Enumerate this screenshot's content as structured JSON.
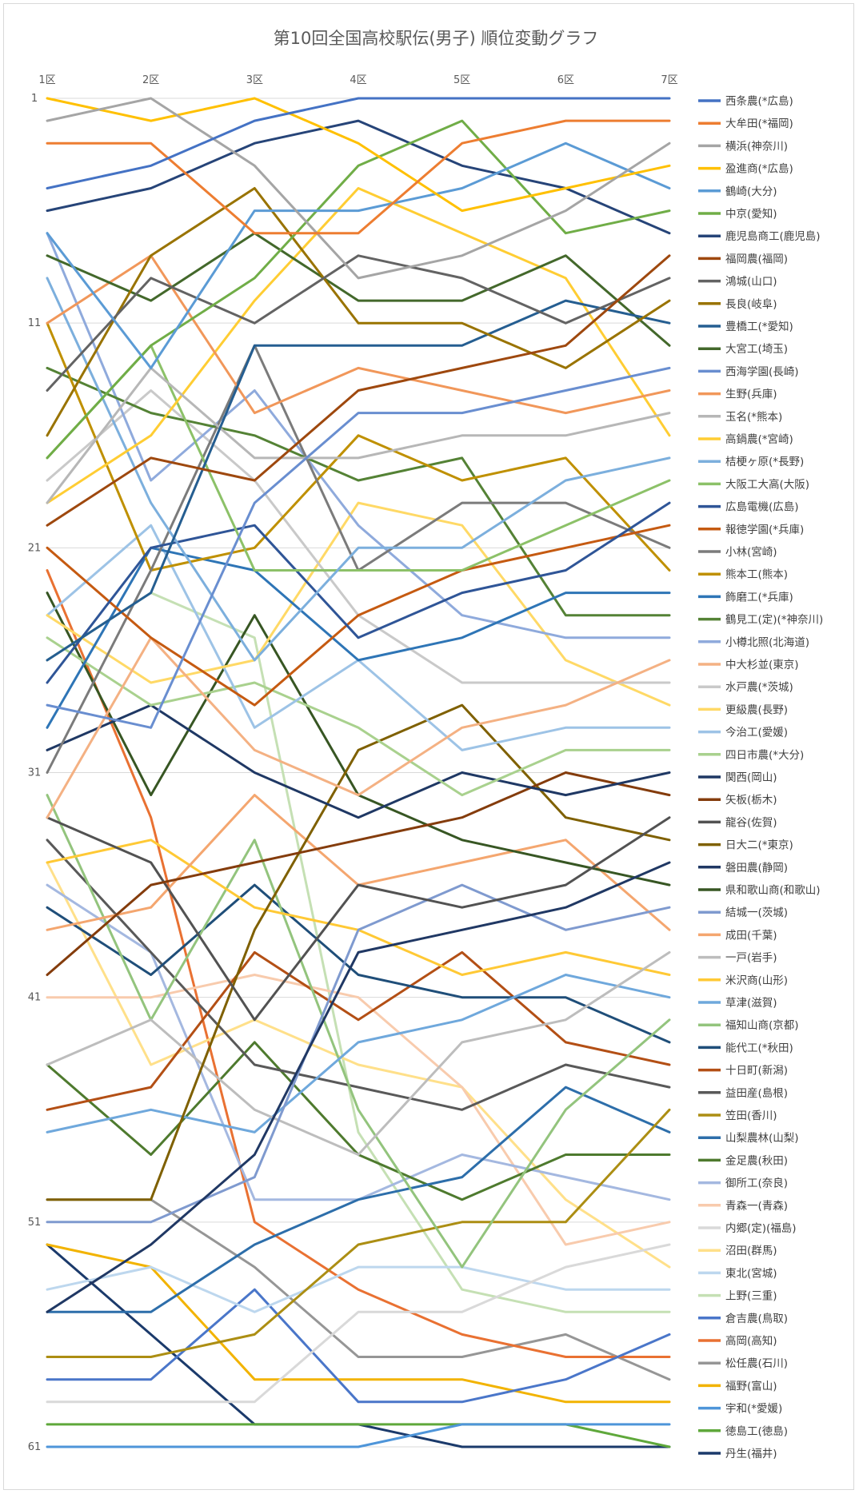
{
  "chart_data": {
    "type": "line",
    "title": "第10回全国高校駅伝(男子) 順位変動グラフ",
    "categories": [
      "1区",
      "2区",
      "3区",
      "4区",
      "5区",
      "6区",
      "7区"
    ],
    "y_ticks": [
      "1",
      "11",
      "21",
      "31",
      "41",
      "51",
      "61"
    ],
    "ylim": [
      1,
      61
    ],
    "y_reversed": true,
    "grid": "horizontal",
    "legend_position": "right",
    "series": [
      {
        "name": "西条農(*広島)",
        "color": "#4472C4",
        "values": [
          5,
          4,
          2,
          1,
          1,
          1,
          1
        ]
      },
      {
        "name": "大牟田(*福岡)",
        "color": "#ED7D31",
        "values": [
          3,
          3,
          7,
          7,
          3,
          2,
          2
        ]
      },
      {
        "name": "横浜(神奈川)",
        "color": "#A5A5A5",
        "values": [
          2,
          1,
          4,
          9,
          8,
          6,
          3
        ]
      },
      {
        "name": "盈進商(*広島)",
        "color": "#FFC000",
        "values": [
          1,
          2,
          1,
          3,
          6,
          5,
          4
        ]
      },
      {
        "name": "鶴崎(大分)",
        "color": "#5B9BD5",
        "values": [
          7,
          13,
          6,
          6,
          5,
          3,
          5
        ]
      },
      {
        "name": "中京(愛知)",
        "color": "#70AD47",
        "values": [
          17,
          12,
          9,
          4,
          2,
          7,
          6
        ]
      },
      {
        "name": "鹿児島商工(鹿児島)",
        "color": "#264478",
        "values": [
          6,
          5,
          3,
          2,
          4,
          5,
          7
        ]
      },
      {
        "name": "福岡農(福岡)",
        "color": "#9E480E",
        "values": [
          20,
          17,
          18,
          14,
          13,
          12,
          8
        ]
      },
      {
        "name": "鴻城(山口)",
        "color": "#636363",
        "values": [
          14,
          9,
          11,
          8,
          9,
          11,
          9
        ]
      },
      {
        "name": "長良(岐阜)",
        "color": "#997300",
        "values": [
          16,
          8,
          5,
          11,
          11,
          13,
          10
        ]
      },
      {
        "name": "豊橋工(*愛知)",
        "color": "#255E91",
        "values": [
          26,
          23,
          12,
          12,
          12,
          10,
          11
        ]
      },
      {
        "name": "大宮工(埼玉)",
        "color": "#43682B",
        "values": [
          8,
          10,
          7,
          10,
          10,
          8,
          12
        ]
      },
      {
        "name": "西海学園(長崎)",
        "color": "#698ED0",
        "values": [
          28,
          29,
          19,
          15,
          15,
          14,
          13
        ]
      },
      {
        "name": "生野(兵庫)",
        "color": "#F1975A",
        "values": [
          11,
          8,
          15,
          13,
          14,
          15,
          14
        ]
      },
      {
        "name": "玉名(*熊本)",
        "color": "#B7B7B7",
        "values": [
          19,
          13,
          17,
          17,
          16,
          16,
          15
        ]
      },
      {
        "name": "高鍋農(*宮崎)",
        "color": "#FFCD33",
        "values": [
          19,
          16,
          10,
          5,
          7,
          9,
          16
        ]
      },
      {
        "name": "桔梗ヶ原(*長野)",
        "color": "#7CAFDD",
        "values": [
          9,
          19,
          26,
          21,
          21,
          18,
          17
        ]
      },
      {
        "name": "大阪工大高(大阪)",
        "color": "#8CC168",
        "values": [
          17,
          12,
          22,
          22,
          22,
          20,
          18
        ]
      },
      {
        "name": "広島電機(広島)",
        "color": "#2F5597",
        "values": [
          27,
          21,
          20,
          25,
          23,
          22,
          19
        ]
      },
      {
        "name": "報徳学園(*兵庫)",
        "color": "#C55A11",
        "values": [
          21,
          25,
          28,
          24,
          22,
          21,
          20
        ]
      },
      {
        "name": "小林(宮崎)",
        "color": "#7B7B7B",
        "values": [
          31,
          22,
          12,
          22,
          19,
          19,
          21
        ]
      },
      {
        "name": "熊本工(熊本)",
        "color": "#BF9000",
        "values": [
          11,
          22,
          21,
          16,
          18,
          17,
          22
        ]
      },
      {
        "name": "飾磨工(*兵庫)",
        "color": "#2E75B6",
        "values": [
          29,
          21,
          22,
          26,
          25,
          23,
          23
        ]
      },
      {
        "name": "鶴見工(定)(*神奈川)",
        "color": "#548235",
        "values": [
          13,
          15,
          16,
          18,
          17,
          24,
          24
        ]
      },
      {
        "name": "小樽北照(北海道)",
        "color": "#8FAADC",
        "values": [
          7,
          18,
          14,
          20,
          24,
          25,
          25
        ]
      },
      {
        "name": "中大杉並(東京)",
        "color": "#F4B183",
        "values": [
          33,
          25,
          30,
          32,
          29,
          28,
          26
        ]
      },
      {
        "name": "水戸農(*茨城)",
        "color": "#C9C9C9",
        "values": [
          18,
          14,
          18,
          24,
          27,
          27,
          27
        ]
      },
      {
        "name": "更級農(長野)",
        "color": "#FFD966",
        "values": [
          24,
          27,
          26,
          19,
          20,
          26,
          28
        ]
      },
      {
        "name": "今治工(愛媛)",
        "color": "#9DC3E6",
        "values": [
          24,
          20,
          29,
          26,
          30,
          29,
          29
        ]
      },
      {
        "name": "四日市農(*大分)",
        "color": "#A9D18E",
        "values": [
          25,
          28,
          27,
          29,
          32,
          30,
          30
        ]
      },
      {
        "name": "関西(岡山)",
        "color": "#1F3864",
        "values": [
          30,
          28,
          31,
          33,
          31,
          32,
          31
        ]
      },
      {
        "name": "矢板(栃木)",
        "color": "#843C0C",
        "values": [
          40,
          36,
          35,
          34,
          33,
          31,
          32
        ]
      },
      {
        "name": "龍谷(佐賀)",
        "color": "#525252",
        "values": [
          33,
          35,
          42,
          36,
          37,
          36,
          33
        ]
      },
      {
        "name": "日大二(*東京)",
        "color": "#7F6000",
        "values": [
          50,
          50,
          38,
          30,
          28,
          33,
          34
        ]
      },
      {
        "name": "磐田農(静岡)",
        "color": "#203864",
        "values": [
          55,
          52,
          48,
          39,
          38,
          37,
          35
        ]
      },
      {
        "name": "県和歌山商(和歌山)",
        "color": "#375623",
        "values": [
          23,
          32,
          24,
          32,
          34,
          35,
          36
        ]
      },
      {
        "name": "結城一(茨城)",
        "color": "#7F9ACF",
        "values": [
          51,
          51,
          49,
          38,
          36,
          38,
          37
        ]
      },
      {
        "name": "成田(千葉)",
        "color": "#F4A66F",
        "values": [
          38,
          37,
          32,
          36,
          35,
          34,
          38
        ]
      },
      {
        "name": "一戸(岩手)",
        "color": "#BDBDBD",
        "values": [
          44,
          42,
          46,
          48,
          43,
          42,
          39
        ]
      },
      {
        "name": "米沢商(山形)",
        "color": "#FFC935",
        "values": [
          35,
          34,
          37,
          38,
          40,
          39,
          40
        ]
      },
      {
        "name": "草津(滋賀)",
        "color": "#6FA8DC",
        "values": [
          47,
          46,
          47,
          43,
          42,
          40,
          41
        ]
      },
      {
        "name": "福知山商(京都)",
        "color": "#93C47D",
        "values": [
          32,
          42,
          34,
          46,
          53,
          46,
          42
        ]
      },
      {
        "name": "能代工(*秋田)",
        "color": "#1F4E79",
        "values": [
          37,
          40,
          36,
          40,
          41,
          41,
          43
        ]
      },
      {
        "name": "十日町(新潟)",
        "color": "#B34F15",
        "values": [
          46,
          45,
          39,
          42,
          39,
          43,
          44
        ]
      },
      {
        "name": "益田産(島根)",
        "color": "#595959",
        "values": [
          34,
          39,
          44,
          45,
          46,
          44,
          45
        ]
      },
      {
        "name": "笠田(香川)",
        "color": "#AC8E13",
        "values": [
          57,
          57,
          56,
          52,
          51,
          51,
          46
        ]
      },
      {
        "name": "山梨農林(山梨)",
        "color": "#2D6EAA",
        "values": [
          55,
          55,
          52,
          50,
          49,
          45,
          47
        ]
      },
      {
        "name": "金足農(秋田)",
        "color": "#4E7A2E",
        "values": [
          44,
          48,
          43,
          48,
          50,
          48,
          48
        ]
      },
      {
        "name": "御所工(奈良)",
        "color": "#A4B8E0",
        "values": [
          36,
          39,
          50,
          50,
          48,
          49,
          50
        ]
      },
      {
        "name": "青森一(青森)",
        "color": "#F8CBAD",
        "values": [
          41,
          41,
          40,
          41,
          45,
          52,
          51
        ]
      },
      {
        "name": "内郷(定)(福島)",
        "color": "#D9D9D9",
        "values": [
          59,
          59,
          59,
          55,
          55,
          53,
          52
        ]
      },
      {
        "name": "沼田(群馬)",
        "color": "#FFE08A",
        "values": [
          35,
          44,
          42,
          44,
          45,
          50,
          53
        ]
      },
      {
        "name": "東北(宮城)",
        "color": "#BDD7EE",
        "values": [
          54,
          53,
          55,
          53,
          53,
          54,
          54
        ]
      },
      {
        "name": "上野(三重)",
        "color": "#C5E0B4",
        "values": [
          26,
          23,
          25,
          47,
          54,
          55,
          55
        ]
      },
      {
        "name": "倉吉農(鳥取)",
        "color": "#4A76C9",
        "values": [
          58,
          58,
          54,
          59,
          59,
          58,
          56
        ]
      },
      {
        "name": "高岡(高知)",
        "color": "#E97132",
        "values": [
          22,
          33,
          51,
          54,
          56,
          57,
          57
        ]
      },
      {
        "name": "松任農(石川)",
        "color": "#969696",
        "values": [
          50,
          50,
          53,
          57,
          57,
          56,
          58
        ]
      },
      {
        "name": "福野(富山)",
        "color": "#F2B300",
        "values": [
          52,
          53,
          58,
          58,
          58,
          59,
          59
        ]
      },
      {
        "name": "宇和(*愛媛)",
        "color": "#4E95D9",
        "values": [
          61,
          61,
          61,
          61,
          60,
          60,
          60
        ]
      },
      {
        "name": "徳島工(徳島)",
        "color": "#5FA83B",
        "values": [
          60,
          60,
          60,
          60,
          60,
          60,
          61
        ]
      },
      {
        "name": "丹生(福井)",
        "color": "#1B3A6B",
        "values": [
          52,
          56,
          60,
          60,
          61,
          61,
          61
        ]
      }
    ]
  }
}
